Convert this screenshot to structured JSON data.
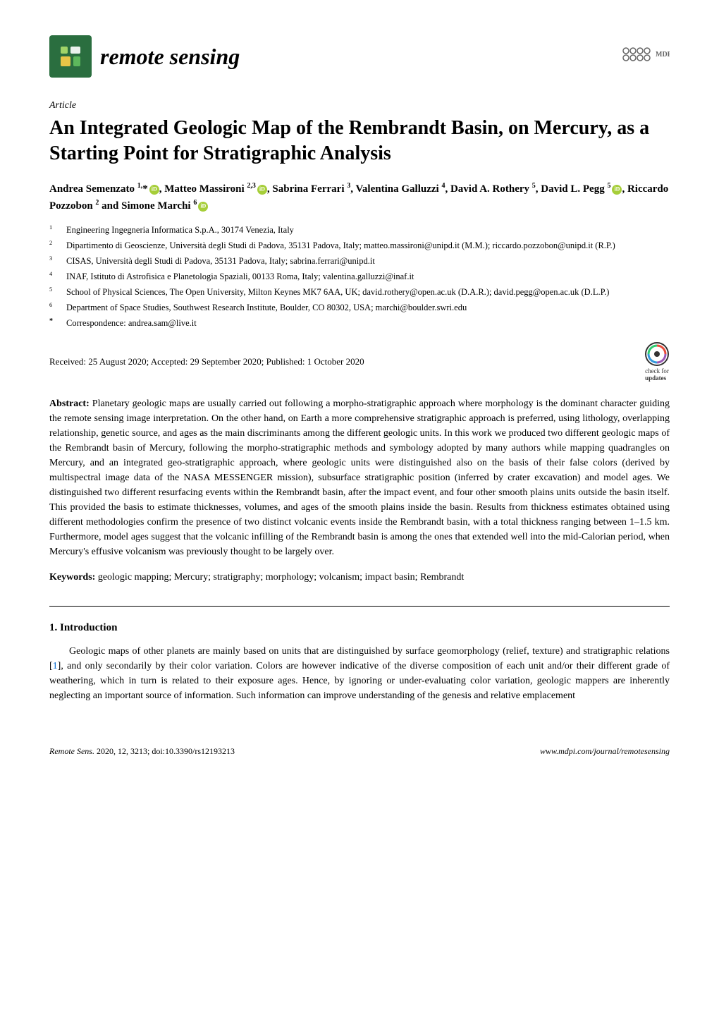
{
  "journal": {
    "name": "remote sensing",
    "logo_bg_color": "#2a6e3f",
    "publisher": "MDPI"
  },
  "article": {
    "type": "Article",
    "title": "An Integrated Geologic Map of the Rembrandt Basin, on Mercury, as a Starting Point for Stratigraphic Analysis",
    "authors_html": "Andrea Semenzato <span class='sup'>1,</span>*<span class='orcid-icon'></span>, Matteo Massironi <span class='sup'>2,3</span><span class='orcid-icon'></span>, Sabrina Ferrari <span class='sup'>3</span>, Valentina Galluzzi <span class='sup'>4</span>, David A. Rothery <span class='sup'>5</span>, David L. Pegg <span class='sup'>5</span><span class='orcid-icon'></span>, Riccardo Pozzobon <span class='sup'>2</span> and Simone Marchi <span class='sup'>6</span><span class='orcid-icon'></span>",
    "affiliations": [
      {
        "num": "1",
        "text": "Engineering Ingegneria Informatica S.p.A., 30174 Venezia, Italy"
      },
      {
        "num": "2",
        "text": "Dipartimento di Geoscienze, Università degli Studi di Padova, 35131 Padova, Italy; matteo.massironi@unipd.it (M.M.); riccardo.pozzobon@unipd.it (R.P.)"
      },
      {
        "num": "3",
        "text": "CISAS, Università degli Studi di Padova, 35131 Padova, Italy; sabrina.ferrari@unipd.it"
      },
      {
        "num": "4",
        "text": "INAF, Istituto di Astrofisica e Planetologia Spaziali, 00133 Roma, Italy; valentina.galluzzi@inaf.it"
      },
      {
        "num": "5",
        "text": "School of Physical Sciences, The Open University, Milton Keynes MK7 6AA, UK; david.rothery@open.ac.uk (D.A.R.); david.pegg@open.ac.uk (D.L.P.)"
      },
      {
        "num": "6",
        "text": "Department of Space Studies, Southwest Research Institute, Boulder, CO 80302, USA; marchi@boulder.swri.edu"
      }
    ],
    "correspondence": {
      "mark": "*",
      "text": "Correspondence: andrea.sam@live.it"
    },
    "dates": "Received: 25 August 2020; Accepted: 29 September 2020; Published: 1 October 2020",
    "check_updates_label": "check for",
    "check_updates_label2": "updates",
    "abstract_label": "Abstract:",
    "abstract": "Planetary geologic maps are usually carried out following a morpho-stratigraphic approach where morphology is the dominant character guiding the remote sensing image interpretation. On the other hand, on Earth a more comprehensive stratigraphic approach is preferred, using lithology, overlapping relationship, genetic source, and ages as the main discriminants among the different geologic units. In this work we produced two different geologic maps of the Rembrandt basin of Mercury, following the morpho-stratigraphic methods and symbology adopted by many authors while mapping quadrangles on Mercury, and an integrated geo-stratigraphic approach, where geologic units were distinguished also on the basis of their false colors (derived by multispectral image data of the NASA MESSENGER mission), subsurface stratigraphic position (inferred by crater excavation) and model ages. We distinguished two different resurfacing events within the Rembrandt basin, after the impact event, and four other smooth plains units outside the basin itself. This provided the basis to estimate thicknesses, volumes, and ages of the smooth plains inside the basin. Results from thickness estimates obtained using different methodologies confirm the presence of two distinct volcanic events inside the Rembrandt basin, with a total thickness ranging between 1–1.5 km. Furthermore, model ages suggest that the volcanic infilling of the Rembrandt basin is among the ones that extended well into the mid-Calorian period, when Mercury's effusive volcanism was previously thought to be largely over.",
    "keywords_label": "Keywords:",
    "keywords": "geologic mapping; Mercury; stratigraphy; morphology; volcanism; impact basin; Rembrandt"
  },
  "section": {
    "heading": "1. Introduction",
    "body": "Geologic maps of other planets are mainly based on units that are distinguished by surface geomorphology (relief, texture) and stratigraphic relations [1], and only secondarily by their color variation. Colors are however indicative of the diverse composition of each unit and/or their different grade of weathering, which in turn is related to their exposure ages. Hence, by ignoring or under-evaluating color variation, geologic mappers are inherently neglecting an important source of information. Such information can improve understanding of the genesis and relative emplacement",
    "ref_color": "#0066cc"
  },
  "footer": {
    "left_italic": "Remote Sens.",
    "left_rest": " 2020, 12, 3213; doi:10.3390/rs12193213",
    "right": "www.mdpi.com/journal/remotesensing"
  },
  "colors": {
    "text": "#000000",
    "background": "#ffffff",
    "orcid": "#a6ce39",
    "link": "#0066cc"
  },
  "typography": {
    "body_fontsize": 14,
    "title_fontsize": 28,
    "journal_name_fontsize": 32,
    "authors_fontsize": 15,
    "affil_fontsize": 12.5,
    "footer_fontsize": 12
  }
}
